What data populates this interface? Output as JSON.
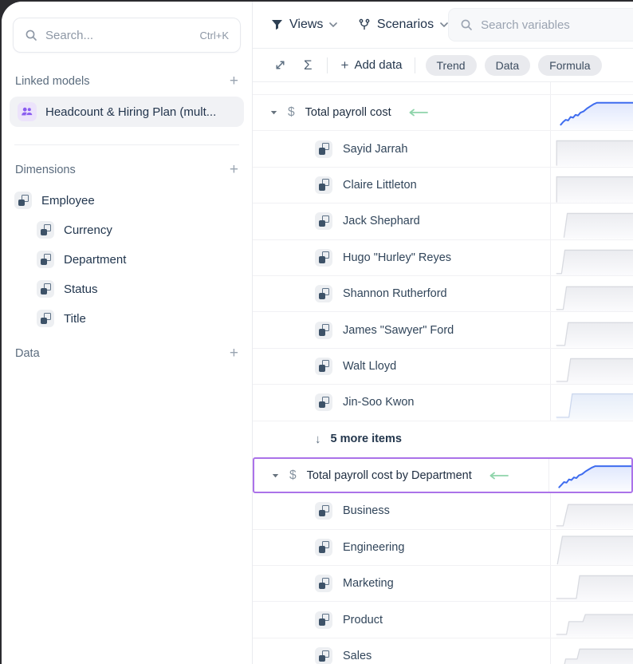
{
  "sidebar": {
    "search": {
      "placeholder": "Search...",
      "shortcut": "Ctrl+K"
    },
    "linked_models": {
      "label": "Linked models",
      "add": "+"
    },
    "linked_model_item": {
      "label": "Headcount & Hiring Plan (mult..."
    },
    "dimensions": {
      "label": "Dimensions",
      "add": "+"
    },
    "dimension_root": "Employee",
    "dimension_children": [
      "Currency",
      "Department",
      "Status",
      "Title"
    ],
    "data_section": {
      "label": "Data",
      "add": "+"
    }
  },
  "toolbar": {
    "views_label": "Views",
    "scenarios_label": "Scenarios",
    "search_placeholder": "Search variables",
    "sigma": "Σ",
    "add_data_label": "Add data",
    "add_data_plus": "+",
    "pills": [
      "Trend",
      "Data",
      "Formula"
    ],
    "more_arrow": "↓"
  },
  "colors": {
    "accent_blue": "#3e6cef",
    "selection_purple": "#ab72e9",
    "green_arrow": "#8ed4aa",
    "spark_grey_line": "#d8dae0",
    "spark_grey_fill_top": "#ebecf0",
    "spark_grey_fill_bottom": "#fbfbfd",
    "model_icon_purple": "#8a5cf0"
  },
  "table": {
    "rows": [
      {
        "type": "variable",
        "label": "Total payroll cost",
        "has_green_arrow": true,
        "selected": false,
        "spark": {
          "kind": "line",
          "tint": "blue",
          "points": [
            [
              12,
              84
            ],
            [
              15,
              76
            ],
            [
              18,
              70
            ],
            [
              21,
              72
            ],
            [
              24,
              62
            ],
            [
              27,
              64
            ],
            [
              30,
              56
            ],
            [
              33,
              58
            ],
            [
              36,
              50
            ],
            [
              40,
              46
            ],
            [
              44,
              38
            ],
            [
              48,
              32
            ],
            [
              52,
              26
            ],
            [
              56,
              22
            ],
            [
              100,
              22
            ]
          ]
        }
      },
      {
        "type": "item",
        "label": "Sayid Jarrah",
        "spark": {
          "kind": "area",
          "tint": "grey",
          "points": [
            [
              7,
              97
            ],
            [
              7,
              28
            ],
            [
              100,
              28
            ]
          ]
        }
      },
      {
        "type": "item",
        "label": "Claire Littleton",
        "spark": {
          "kind": "area",
          "tint": "grey",
          "points": [
            [
              7,
              97
            ],
            [
              7,
              26
            ],
            [
              100,
              26
            ]
          ]
        }
      },
      {
        "type": "item",
        "label": "Jack Shephard",
        "spark": {
          "kind": "area",
          "tint": "grey",
          "points": [
            [
              16,
              95
            ],
            [
              20,
              28
            ],
            [
              100,
              28
            ]
          ]
        }
      },
      {
        "type": "item",
        "label": "Hugo \"Hurley\" Reyes",
        "spark": {
          "kind": "area",
          "tint": "grey",
          "points": [
            [
              7,
              94
            ],
            [
              13,
              94
            ],
            [
              17,
              28
            ],
            [
              100,
              28
            ]
          ]
        }
      },
      {
        "type": "item",
        "label": "Shannon Rutherford",
        "spark": {
          "kind": "area",
          "tint": "grey",
          "points": [
            [
              7,
              94
            ],
            [
              15,
              94
            ],
            [
              19,
              30
            ],
            [
              100,
              30
            ]
          ]
        }
      },
      {
        "type": "item",
        "label": "James \"Sawyer\" Ford",
        "spark": {
          "kind": "area",
          "tint": "grey",
          "points": [
            [
              7,
              94
            ],
            [
              17,
              94
            ],
            [
              21,
              30
            ],
            [
              100,
              30
            ]
          ]
        }
      },
      {
        "type": "item",
        "label": "Walt Lloyd",
        "spark": {
          "kind": "area",
          "tint": "grey",
          "points": [
            [
              7,
              92
            ],
            [
              20,
              92
            ],
            [
              24,
              28
            ],
            [
              100,
              28
            ]
          ]
        }
      },
      {
        "type": "item",
        "label": "Jin-Soo Kwon",
        "spark": {
          "kind": "area",
          "tint": "bluegrey",
          "points": [
            [
              7,
              92
            ],
            [
              22,
              92
            ],
            [
              26,
              26
            ],
            [
              100,
              26
            ]
          ]
        }
      },
      {
        "type": "more",
        "label": "5 more items"
      },
      {
        "type": "variable",
        "label": "Total payroll cost by Department",
        "has_green_arrow": false,
        "selected": true,
        "spark": {
          "kind": "line",
          "tint": "blue",
          "points": [
            [
              12,
              86
            ],
            [
              15,
              78
            ],
            [
              18,
              70
            ],
            [
              21,
              72
            ],
            [
              24,
              62
            ],
            [
              27,
              64
            ],
            [
              30,
              56
            ],
            [
              33,
              58
            ],
            [
              36,
              50
            ],
            [
              40,
              46
            ],
            [
              44,
              38
            ],
            [
              48,
              32
            ],
            [
              52,
              26
            ],
            [
              56,
              22
            ],
            [
              100,
              22
            ]
          ]
        }
      },
      {
        "type": "item",
        "label": "Business",
        "spark": {
          "kind": "area",
          "tint": "grey",
          "points": [
            [
              7,
              92
            ],
            [
              15,
              92
            ],
            [
              21,
              32
            ],
            [
              100,
              32
            ]
          ]
        }
      },
      {
        "type": "item",
        "label": "Engineering",
        "spark": {
          "kind": "area",
          "tint": "grey",
          "points": [
            [
              8,
              96
            ],
            [
              14,
              18
            ],
            [
              100,
              18
            ]
          ]
        }
      },
      {
        "type": "item",
        "label": "Marketing",
        "spark": {
          "kind": "area",
          "tint": "grey",
          "points": [
            [
              7,
              92
            ],
            [
              31,
              92
            ],
            [
              35,
              28
            ],
            [
              100,
              28
            ]
          ]
        }
      },
      {
        "type": "item",
        "label": "Product",
        "spark": {
          "kind": "area",
          "tint": "grey",
          "points": [
            [
              7,
              92
            ],
            [
              19,
              92
            ],
            [
              22,
              56
            ],
            [
              39,
              56
            ],
            [
              42,
              36
            ],
            [
              100,
              36
            ]
          ]
        }
      },
      {
        "type": "item",
        "label": "Sales",
        "spark": {
          "kind": "area",
          "tint": "grey",
          "points": [
            [
              7,
              90
            ],
            [
              15,
              90
            ],
            [
              18,
              58
            ],
            [
              32,
              58
            ],
            [
              35,
              30
            ],
            [
              100,
              30
            ]
          ]
        }
      }
    ]
  }
}
